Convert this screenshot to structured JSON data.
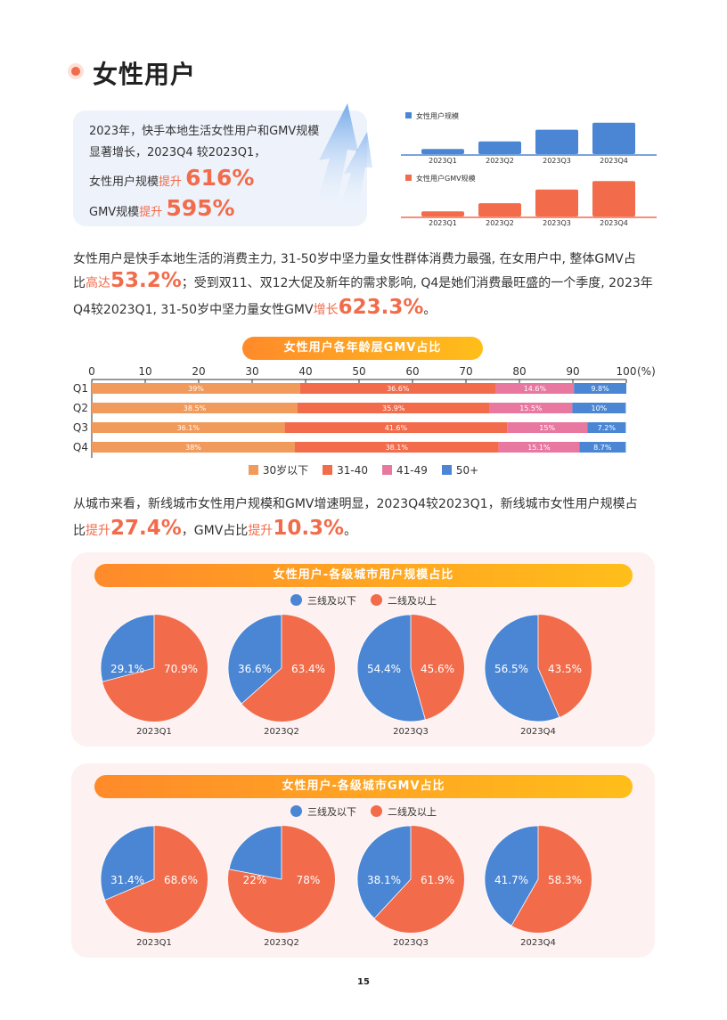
{
  "header": {
    "title": "女性用户"
  },
  "intro": {
    "line1": "2023年，快手本地生活女性用户和GMV规模",
    "line2": "显著增长，2023Q4 较2023Q1，",
    "line3_prefix": "女性用户规模",
    "line3_hl": "提升",
    "line3_value": "616%",
    "line4_prefix": "GMV规模",
    "line4_hl": "提升",
    "line4_value": "595%"
  },
  "paragraph1": {
    "l1": "女性用户是快手本地生活的消费主力, 31-50岁中坚力量女性群体消费力最强, 在女用户中, 整体GMV占",
    "l2_a": "比",
    "l2_hl": "高达",
    "l2_value": "53.2%",
    "l2_b": "；受到双11、双12大促及新年的需求影响, Q4是她们消费最旺盛的一个季度, 2023年",
    "l3_a": "Q4较2023Q1, 31-50岁中坚力量女性GMV",
    "l3_hl": "增长",
    "l3_value": "623.3%",
    "l3_b": "。"
  },
  "paragraph2": {
    "l1": "从城市来看，新线城市女性用户规模和GMV增速明显，2023Q4较2023Q1，新线城市女性用户规模占",
    "l2_a": "比",
    "l2_hl": "提升",
    "l2_value": "27.4%",
    "l2_b": "，GMV占比",
    "l2_hl2": "提升",
    "l2_value2": "10.3%",
    "l2_c": "。"
  },
  "page_number": "15",
  "colors": {
    "orange": "#f26b4a",
    "blue": "#4a86d4",
    "pink": "#e8789f",
    "light_orange": "#f09a5b"
  },
  "chart_data": [
    {
      "type": "bar",
      "categories": [
        "2023Q1",
        "2023Q2",
        "2023Q3",
        "2023Q4"
      ],
      "series": [
        {
          "name": "女性用户规模",
          "values": [
            1.0,
            2.5,
            4.8,
            6.16
          ]
        }
      ],
      "color": "#4a86d4"
    },
    {
      "type": "bar",
      "categories": [
        "2023Q1",
        "2023Q2",
        "2023Q3",
        "2023Q4"
      ],
      "series": [
        {
          "name": "女性用户GMV规模",
          "values": [
            1.0,
            2.6,
            5.3,
            6.95
          ]
        }
      ],
      "color": "#f26b4a"
    },
    {
      "type": "bar",
      "stacked": true,
      "orientation": "horizontal",
      "title": "女性用户各年龄层GMV占比",
      "categories": [
        "Q1",
        "Q2",
        "Q3",
        "Q4"
      ],
      "xlim": [
        0,
        100
      ],
      "xticks": [
        0,
        10,
        20,
        30,
        40,
        50,
        60,
        70,
        80,
        90,
        100
      ],
      "x_unit": "(%)",
      "series": [
        {
          "name": "30岁以下",
          "color": "#f09a5b",
          "values": [
            39,
            38.5,
            36.1,
            38
          ]
        },
        {
          "name": "31-40",
          "color": "#f26b4a",
          "values": [
            36.6,
            35.9,
            41.6,
            38.1
          ]
        },
        {
          "name": "41-49",
          "color": "#e8789f",
          "values": [
            14.6,
            15.5,
            15,
            15.1
          ]
        },
        {
          "name": "50+",
          "color": "#4a86d4",
          "values": [
            9.8,
            10,
            7.2,
            8.7
          ]
        }
      ]
    },
    {
      "type": "pie",
      "title": "女性用户-各级城市用户规模占比",
      "legend": [
        "三线及以下",
        "二线及以上"
      ],
      "pies": [
        {
          "label": "2023Q1",
          "values": [
            29.1,
            70.9
          ]
        },
        {
          "label": "2023Q2",
          "values": [
            36.6,
            63.4
          ]
        },
        {
          "label": "2023Q3",
          "values": [
            54.4,
            45.6
          ]
        },
        {
          "label": "2023Q4",
          "values": [
            56.5,
            43.5
          ]
        }
      ]
    },
    {
      "type": "pie",
      "title": "女性用户-各级城市GMV占比",
      "legend": [
        "三线及以下",
        "二线及以上"
      ],
      "pies": [
        {
          "label": "2023Q1",
          "values": [
            31.4,
            68.6
          ]
        },
        {
          "label": "2023Q2",
          "values": [
            22,
            78
          ]
        },
        {
          "label": "2023Q3",
          "values": [
            38.1,
            61.9
          ]
        },
        {
          "label": "2023Q4",
          "values": [
            41.7,
            58.3
          ]
        }
      ]
    }
  ]
}
